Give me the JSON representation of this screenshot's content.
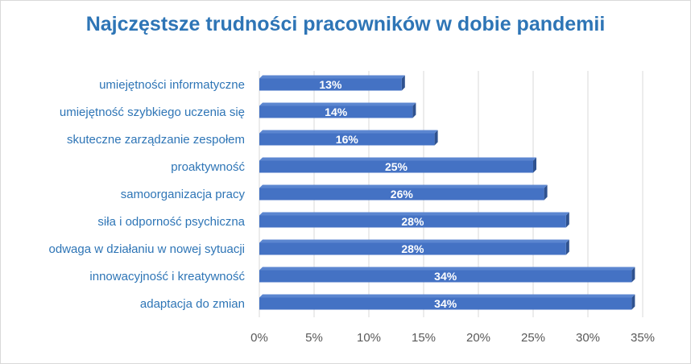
{
  "chart_data": {
    "type": "bar",
    "orientation": "horizontal",
    "title": "Najczęstsze trudności pracowników w dobie pandemii",
    "categories": [
      "umiejętności informatyczne",
      "umiejętność szybkiego uczenia się",
      "skuteczne zarządzanie zespołem",
      "proaktywność",
      "samoorganizacja pracy",
      "siła i odporność psychiczna",
      "odwaga w działaniu w nowej sytuacji",
      "innowacyjność i kreatywność",
      "adaptacja do zmian"
    ],
    "values": [
      13,
      14,
      16,
      25,
      26,
      28,
      28,
      34,
      34
    ],
    "data_labels": [
      "13%",
      "14%",
      "16%",
      "25%",
      "26%",
      "28%",
      "28%",
      "34%",
      "34%"
    ],
    "x_ticks": [
      "0%",
      "5%",
      "10%",
      "15%",
      "20%",
      "25%",
      "30%",
      "35%"
    ],
    "xlim": [
      0,
      35
    ],
    "xlabel": "",
    "ylabel": "",
    "grid": "vertical",
    "legend": "none",
    "colors": {
      "bar": "#4472c4",
      "bar_side": "#2f528f",
      "title": "#2e75b6",
      "category_text": "#2e75b6",
      "tick_text": "#595959",
      "grid": "#d9d9d9"
    }
  }
}
